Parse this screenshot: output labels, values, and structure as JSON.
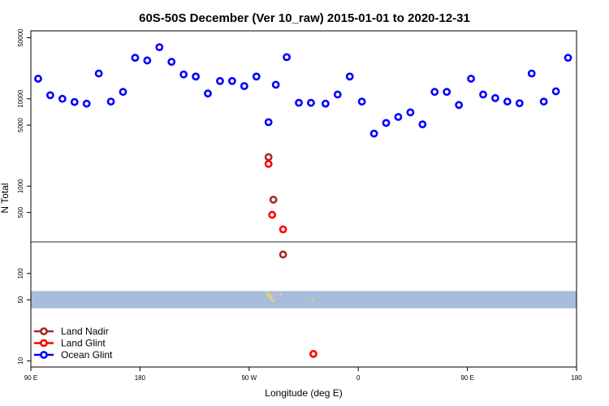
{
  "chart_data": {
    "type": "scatter",
    "title": "60S-50S December (Ver 10_raw)   2015-01-01 to 2020-12-31",
    "xlabel": "Longitude (deg E)",
    "ylabel": "N Total",
    "y_scale": "log",
    "xlim": [
      90,
      540
    ],
    "ylim": [
      8.5,
      60000
    ],
    "x_ticks": [
      {
        "value": 90,
        "label": "90 E"
      },
      {
        "value": 180,
        "label": "180"
      },
      {
        "value": 270,
        "label": "90 W"
      },
      {
        "value": 360,
        "label": "0"
      },
      {
        "value": 450,
        "label": "90 E"
      },
      {
        "value": 540,
        "label": "180"
      }
    ],
    "y_ticks": [
      {
        "value": 10,
        "label": "10"
      },
      {
        "value": 50,
        "label": "50"
      },
      {
        "value": 100,
        "label": "100"
      },
      {
        "value": 500,
        "label": "500"
      },
      {
        "value": 1000,
        "label": "1000"
      },
      {
        "value": 5000,
        "label": "5000"
      },
      {
        "value": 10000,
        "label": "10000"
      },
      {
        "value": 50000,
        "label": "50000"
      }
    ],
    "reference_line": 230,
    "band": [
      40,
      63
    ],
    "band_color": "#a8bcdc",
    "land_color": "#f2d16b",
    "legend_position": "bottom-left",
    "series": [
      {
        "name": "Land Nadir",
        "color": "#a52a2a",
        "points": [
          [
            286,
            2150
          ],
          [
            290,
            700
          ],
          [
            298,
            165
          ]
        ]
      },
      {
        "name": "Land Glint",
        "color": "#ff0000",
        "points": [
          [
            286,
            1800
          ],
          [
            289,
            470
          ],
          [
            298,
            320
          ],
          [
            323,
            12
          ]
        ]
      },
      {
        "name": "Ocean Glint",
        "color": "#0000ff",
        "points": [
          [
            96,
            17000
          ],
          [
            106,
            11000
          ],
          [
            116,
            10000
          ],
          [
            126,
            9200
          ],
          [
            136,
            8800
          ],
          [
            146,
            19500
          ],
          [
            156,
            9300
          ],
          [
            166,
            12000
          ],
          [
            176,
            29500
          ],
          [
            186,
            27500
          ],
          [
            196,
            39000
          ],
          [
            206,
            26500
          ],
          [
            216,
            19000
          ],
          [
            226,
            18000
          ],
          [
            236,
            11500
          ],
          [
            246,
            16000
          ],
          [
            256,
            16000
          ],
          [
            266,
            14000
          ],
          [
            276,
            18000
          ],
          [
            286,
            5400
          ],
          [
            292,
            14500
          ],
          [
            301,
            30000
          ],
          [
            311,
            9000
          ],
          [
            321,
            9000
          ],
          [
            333,
            8800
          ],
          [
            343,
            11200
          ],
          [
            353,
            18000
          ],
          [
            363,
            9300
          ],
          [
            373,
            4000
          ],
          [
            383,
            5300
          ],
          [
            393,
            6200
          ],
          [
            403,
            7000
          ],
          [
            413,
            5100
          ],
          [
            423,
            12000
          ],
          [
            433,
            12000
          ],
          [
            443,
            8500
          ],
          [
            453,
            17000
          ],
          [
            463,
            11200
          ],
          [
            473,
            10200
          ],
          [
            483,
            9300
          ],
          [
            493,
            8900
          ],
          [
            503,
            19500
          ],
          [
            513,
            9300
          ],
          [
            523,
            12200
          ],
          [
            533,
            29500
          ]
        ]
      }
    ],
    "land_points": [
      [
        285,
        58
      ],
      [
        286,
        56
      ],
      [
        287,
        54
      ],
      [
        288,
        52
      ],
      [
        289,
        50
      ],
      [
        290,
        49
      ],
      [
        285,
        60
      ],
      [
        287,
        57
      ],
      [
        289,
        55
      ],
      [
        296,
        58
      ],
      [
        322,
        50
      ]
    ]
  }
}
